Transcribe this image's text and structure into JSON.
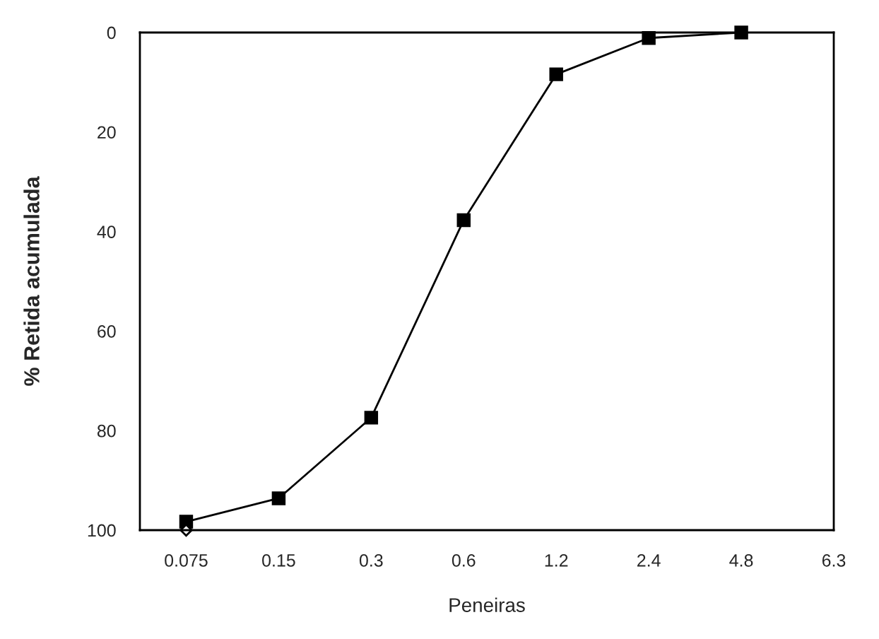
{
  "chart_data": {
    "type": "line",
    "xlabel": "Peneiras",
    "ylabel": "% Retida acumulada",
    "categories": [
      "0.075",
      "0.15",
      "0.3",
      "0.6",
      "1.2",
      "2.4",
      "4.8",
      "6.3"
    ],
    "series": [
      {
        "color": "#000000",
        "marker": "square",
        "values": [
          98.3,
          93.6,
          77.4,
          37.7,
          8.4,
          1.1,
          0,
          null
        ]
      },
      {
        "color": "#000000",
        "marker": "diamond",
        "type": "scatter",
        "values": [
          100,
          null,
          null,
          null,
          null,
          null,
          null,
          null
        ]
      }
    ],
    "ylim": [
      100,
      0
    ],
    "yticks": [
      0,
      20,
      40,
      60,
      80,
      100
    ],
    "grid": false,
    "legend": false,
    "line_style": "solid"
  }
}
